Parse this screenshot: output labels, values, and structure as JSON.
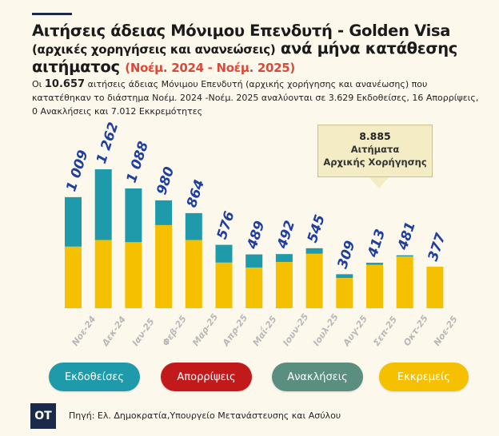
{
  "title": {
    "line1": "Αιτήσεις άδειας Μόνιμου Επενδυτή - Golden Visa",
    "sub": "(αρχικές χορηγήσεις και ανανεώσεις)",
    "line2": "ανά μήνα κατάθεσης αιτήματος",
    "period": "(Νοέμ. 2024 - Νοέμ. 2025)"
  },
  "description": {
    "pre": "Οι",
    "total": "10.657",
    "post": "αιτήσεις άδειας Μόνιμου Επενδυτή (αρχικής χορήγησης και ανανέωσης) που κατατέθηκαν το διάστημα Νοέμ. 2024 -Νοέμ. 2025 αναλύονται σε 3.629 Εκδοθείσες, 16 Απορρίψεις, 0 Ανακλήσεις και 7.012 Εκκρεμότητες"
  },
  "callout": {
    "number": "8.885",
    "line1": "Αιτήματα",
    "line2": "Αρχικής Χορήγησης"
  },
  "legend": [
    {
      "label": "Εκδοθείσες",
      "color": "#1e9aaa"
    },
    {
      "label": "Απορρίψεις",
      "color": "#c21a1a"
    },
    {
      "label": "Ανακλήσεις",
      "color": "#5a8f80"
    },
    {
      "label": "Εκκρεμείς",
      "color": "#f5c000"
    }
  ],
  "footer": {
    "logo": "OT",
    "source": "Πηγή: Ελ. Δημοκρατία,Υπουργείο Μετανάστευσης και Ασύλου"
  },
  "colors": {
    "issued": "#1e9aaa",
    "pending": "#f5c000",
    "total_label": "#1f3f9f",
    "month_label": "#b8b8b8"
  },
  "chart_data": {
    "type": "bar",
    "stacked": true,
    "categories": [
      "Νοε-24",
      "Δεκ-24",
      "Ιαν-25",
      "Φεβ-25",
      "Μαρ-25",
      "Απρ-25",
      "Μαΐ-25",
      "Ιουν-25",
      "Ιουλ-25",
      "Αυγ-25",
      "Σεπ-25",
      "Οκτ-25",
      "Νοε-25"
    ],
    "totals": [
      "1 009",
      "1 262",
      "1 088",
      "980",
      "864",
      "576",
      "489",
      "492",
      "545",
      "309",
      "413",
      "481",
      "377"
    ],
    "series": [
      {
        "name": "Εκκρεμείς",
        "values": [
          560,
          620,
          600,
          755,
          620,
          415,
          370,
          420,
          495,
          275,
          395,
          470,
          377
        ]
      },
      {
        "name": "Εκδοθείσες",
        "values": [
          449,
          642,
          488,
          225,
          244,
          161,
          119,
          72,
          50,
          34,
          18,
          11,
          0
        ]
      }
    ],
    "ylim": [
      0,
      1262
    ],
    "grid": false
  }
}
